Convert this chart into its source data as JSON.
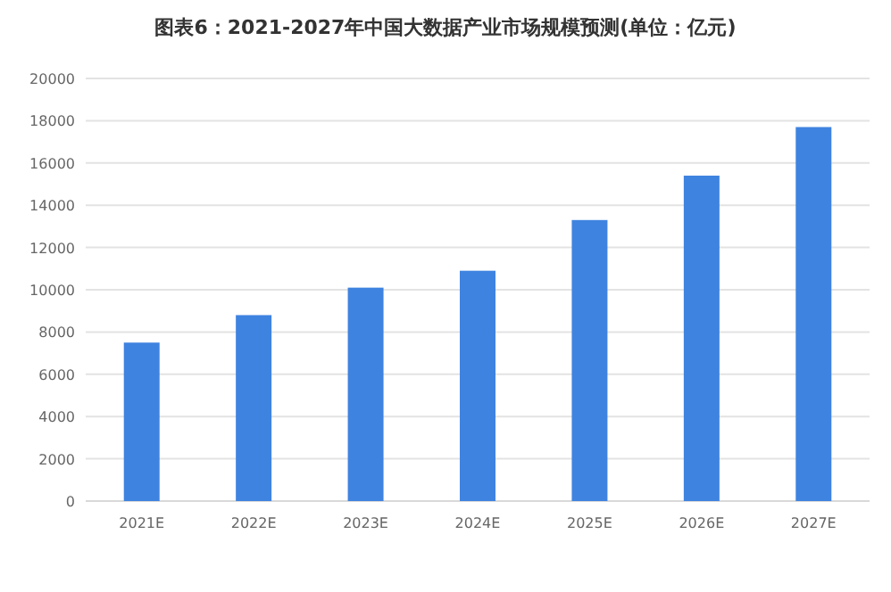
{
  "chart_data": {
    "type": "bar",
    "title": "图表6：2021-2027年中国大数据产业市场规模预测(单位：亿元)",
    "categories": [
      "2021E",
      "2022E",
      "2023E",
      "2024E",
      "2025E",
      "2026E",
      "2027E"
    ],
    "values": [
      7500,
      8800,
      10100,
      10900,
      13300,
      15400,
      17700
    ],
    "color": "#3f83e0",
    "ylim": [
      0,
      20000
    ],
    "yticks": [
      0,
      2000,
      4000,
      6000,
      8000,
      10000,
      12000,
      14000,
      16000,
      18000,
      20000
    ],
    "grid": "y"
  }
}
